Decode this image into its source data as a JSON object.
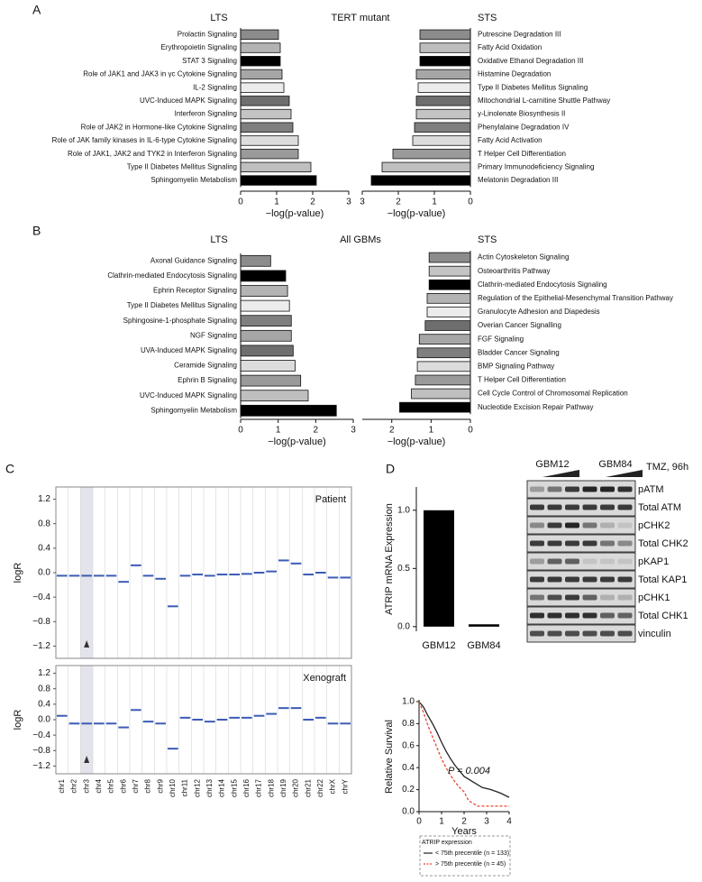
{
  "panels": {
    "a": "A",
    "b": "B",
    "c": "C",
    "d": "D"
  },
  "chart_data": [
    {
      "type": "bar",
      "orientation": "horizontal",
      "title": "TERT mutant",
      "group_label": "LTS",
      "x_label": "−log(p-value)",
      "categories": [
        "Prolactin Signaling",
        "Erythropoietin Signaling",
        "STAT 3 Signaling",
        "Role of JAK1 and JAK3 in γc Cytokine Signaling",
        "IL-2 Signaling",
        "UVC-Induced MAPK Signaling",
        "Interferon Signaling",
        "Role of JAK2 in Hormone-like Cytokine Signaling",
        "Role of JAK family kinases in IL-6-type Cytokine Signaling",
        "Role of JAK1, JAK2 and TYK2 in Interferon Signaling",
        "Type II Diabetes Mellitus Signaling",
        "Sphingomyelin Metabolism"
      ],
      "values": [
        1.05,
        1.1,
        1.1,
        1.15,
        1.2,
        1.35,
        1.4,
        1.45,
        1.6,
        1.6,
        1.95,
        2.1
      ],
      "colors": [
        "#8c8c8c",
        "#b3b3b3",
        "#000000",
        "#a6a6a6",
        "#ececec",
        "#6e6e6e",
        "#c4c4c4",
        "#7f7f7f",
        "#dcdcdc",
        "#9a9a9a",
        "#bfbfbf",
        "#000000"
      ],
      "xlim": [
        0,
        3
      ],
      "xticks": [
        0,
        1,
        2,
        3
      ]
    },
    {
      "type": "bar",
      "orientation": "horizontal",
      "reversed": true,
      "group_label": "STS",
      "x_label": "−log(p-value)",
      "categories": [
        "Putrescine Degradation III",
        "Fatty Acid Oxidation",
        "Oxidative Ethanol Degradation III",
        "Histamine Degradation",
        "Type II Diabetes Mellitus Signaling",
        "Mitochondrial L-carnitine Shuttle Pathway",
        "γ-Linolenate Biosynthesis II",
        "Phenylalaine Degradation IV",
        "Fatty Acid Activation",
        "T Helper Cell Differentiation",
        "Primary Immunodeficiency Signaling",
        "Melatonin Degradation III"
      ],
      "values": [
        1.4,
        1.4,
        1.4,
        1.5,
        1.45,
        1.5,
        1.5,
        1.55,
        1.6,
        2.15,
        2.45,
        2.75
      ],
      "colors": [
        "#8c8c8c",
        "#bdbdbd",
        "#000000",
        "#a6a6a6",
        "#ececec",
        "#6e6e6e",
        "#c4c4c4",
        "#7f7f7f",
        "#dcdcdc",
        "#9a9a9a",
        "#bfbfbf",
        "#000000"
      ],
      "xlim": [
        0,
        3
      ],
      "xticks": [
        3,
        2,
        1,
        0
      ]
    },
    {
      "type": "bar",
      "orientation": "horizontal",
      "title": "All GBMs",
      "group_label": "LTS",
      "x_label": "−log(p-value)",
      "categories": [
        "Axonal Guidance Signaling",
        "Clathrin-mediated Endocytosis Signaling",
        "Ephrin Receptor Signaling",
        "Type II Diabetes Mellitus Signaling",
        "Sphingosine-1-phosphate Signaling",
        "NGF Signaling",
        "UVA-Induced MAPK Signaling",
        "Ceramide Signaling",
        "Ephrin B Signaling",
        "UVC-Induced MAPK Signaling",
        "Sphingomyelin Metabolism"
      ],
      "values": [
        0.8,
        1.2,
        1.25,
        1.3,
        1.35,
        1.35,
        1.4,
        1.45,
        1.6,
        1.8,
        2.55
      ],
      "colors": [
        "#8c8c8c",
        "#000000",
        "#b3b3b3",
        "#ececec",
        "#7f7f7f",
        "#a6a6a6",
        "#6e6e6e",
        "#dcdcdc",
        "#9a9a9a",
        "#bfbfbf",
        "#000000"
      ],
      "xlim": [
        0,
        3
      ],
      "xticks": [
        0,
        1,
        2,
        3
      ]
    },
    {
      "type": "bar",
      "orientation": "horizontal",
      "reversed": true,
      "group_label": "STS",
      "x_label": "−log(p-value)",
      "categories": [
        "Actin Cytoskeleton Signaling",
        "Osteoarthritis Pathway",
        "Clathrin-mediated Endocytosis Signaling",
        "Regulation of the Epithelial-Mesenchymal Transition Pathway",
        "Granulocyte Adhesion and Diapedesis",
        "Overian Cancer Signalling",
        "FGF Signaling",
        "Bladder Cancer Signaling",
        "BMP Signaling Pathway",
        "T Helper Cell Differentiation",
        "Cell Cycle Control of Chromosomal Replication",
        "Nucleotide Excision Repair Pathway"
      ],
      "values": [
        1.05,
        1.05,
        1.05,
        1.1,
        1.1,
        1.15,
        1.3,
        1.35,
        1.35,
        1.4,
        1.5,
        1.8
      ],
      "colors": [
        "#8c8c8c",
        "#c4c4c4",
        "#000000",
        "#b3b3b3",
        "#ececec",
        "#6e6e6e",
        "#a6a6a6",
        "#7f7f7f",
        "#dcdcdc",
        "#9a9a9a",
        "#bfbfbf",
        "#000000"
      ],
      "xlim": [
        0,
        2.75
      ],
      "xticks": [
        2,
        1,
        0
      ]
    },
    {
      "type": "segment",
      "y_label": "logR",
      "categories": [
        "chr1",
        "chr2",
        "chr3",
        "chr4",
        "chr5",
        "chr6",
        "chr7",
        "chr8",
        "chr9",
        "chr10",
        "chr11",
        "chr12",
        "chr13",
        "chr14",
        "chr15",
        "chr16",
        "chr17",
        "chr18",
        "chr19",
        "chr20",
        "chr21",
        "chr22",
        "chrX",
        "chrY"
      ],
      "series": [
        {
          "name": "Patient",
          "color": "#3b5bb5",
          "values": [
            -0.05,
            -0.05,
            -0.05,
            -0.05,
            -0.05,
            -0.15,
            0.12,
            -0.05,
            -0.1,
            -0.55,
            -0.05,
            -0.03,
            -0.05,
            -0.03,
            -0.03,
            -0.02,
            0.0,
            0.02,
            0.2,
            0.15,
            -0.03,
            0.0,
            -0.08,
            -0.08
          ]
        },
        {
          "name": "Xenograft",
          "color": "#3b5bb5",
          "values": [
            0.1,
            -0.1,
            -0.1,
            -0.1,
            -0.1,
            -0.2,
            0.25,
            -0.05,
            -0.1,
            -0.75,
            0.05,
            0.0,
            -0.05,
            0.0,
            0.05,
            0.05,
            0.1,
            0.15,
            0.3,
            0.3,
            0.0,
            0.05,
            -0.1,
            -0.1
          ]
        }
      ],
      "ylim": [
        -1.4,
        1.4
      ],
      "yticks": [
        1.2,
        0.8,
        0.4,
        {
          "value": 0,
          "label": "0.0"
        },
        {
          "value": -0.4,
          "label": "−0.4"
        },
        {
          "value": -0.8,
          "label": "−0.8"
        },
        {
          "value": -1.2,
          "label": "−1.2"
        }
      ]
    },
    {
      "type": "bar",
      "y_label": "ATRIP mRNA Expression",
      "categories": [
        "GBM12",
        "GBM84"
      ],
      "values": [
        1.0,
        0.02
      ],
      "color": "#000000",
      "ylim": [
        -0.04,
        1.2
      ],
      "yticks": [
        {
          "value": 1,
          "label": "1.0"
        },
        0.5,
        {
          "value": 0,
          "label": "0.0"
        }
      ]
    },
    {
      "type": "line",
      "x_label": "Years",
      "y_label": "Relative Survival",
      "annotation": "P = 0.004",
      "legend_title": "ATRIP expression",
      "series": [
        {
          "name": "< 75th precentile (n = 133)",
          "color": "#222222",
          "dash": false,
          "x": [
            0,
            0.2,
            0.4,
            0.6,
            0.8,
            1.0,
            1.2,
            1.4,
            1.6,
            1.8,
            2.0,
            2.4,
            2.8,
            3.2,
            3.6,
            4.0
          ],
          "values": [
            1,
            0.95,
            0.87,
            0.8,
            0.72,
            0.63,
            0.55,
            0.48,
            0.42,
            0.37,
            0.32,
            0.27,
            0.22,
            0.2,
            0.17,
            0.13
          ]
        },
        {
          "name": "> 75th precentile (n = 45)",
          "color": "#e8452c",
          "dash": true,
          "x": [
            0,
            0.2,
            0.4,
            0.6,
            0.8,
            1.0,
            1.2,
            1.4,
            1.6,
            1.8,
            2.0,
            2.2,
            2.6,
            3.0,
            4.0
          ],
          "values": [
            1,
            0.9,
            0.78,
            0.68,
            0.58,
            0.48,
            0.4,
            0.33,
            0.27,
            0.22,
            0.18,
            0.1,
            0.05,
            0.05,
            0.05
          ]
        }
      ],
      "xlim": [
        0,
        4
      ],
      "xticks": [
        0,
        1,
        2,
        3,
        4
      ],
      "ylim": [
        0,
        1
      ],
      "yticks": [
        {
          "value": 0,
          "label": "0.0"
        },
        0.2,
        0.4,
        0.6,
        0.8,
        {
          "value": 1,
          "label": "1.0"
        }
      ]
    }
  ],
  "blot": {
    "groups": [
      "GBM12",
      "GBM84"
    ],
    "treatment": "TMZ, 96h",
    "rows": [
      "pATM",
      "Total ATM",
      "pCHK2",
      "Total CHK2",
      "pKAP1",
      "Total KAP1",
      "pCHK1",
      "Total CHK1",
      "vinculin"
    ]
  }
}
